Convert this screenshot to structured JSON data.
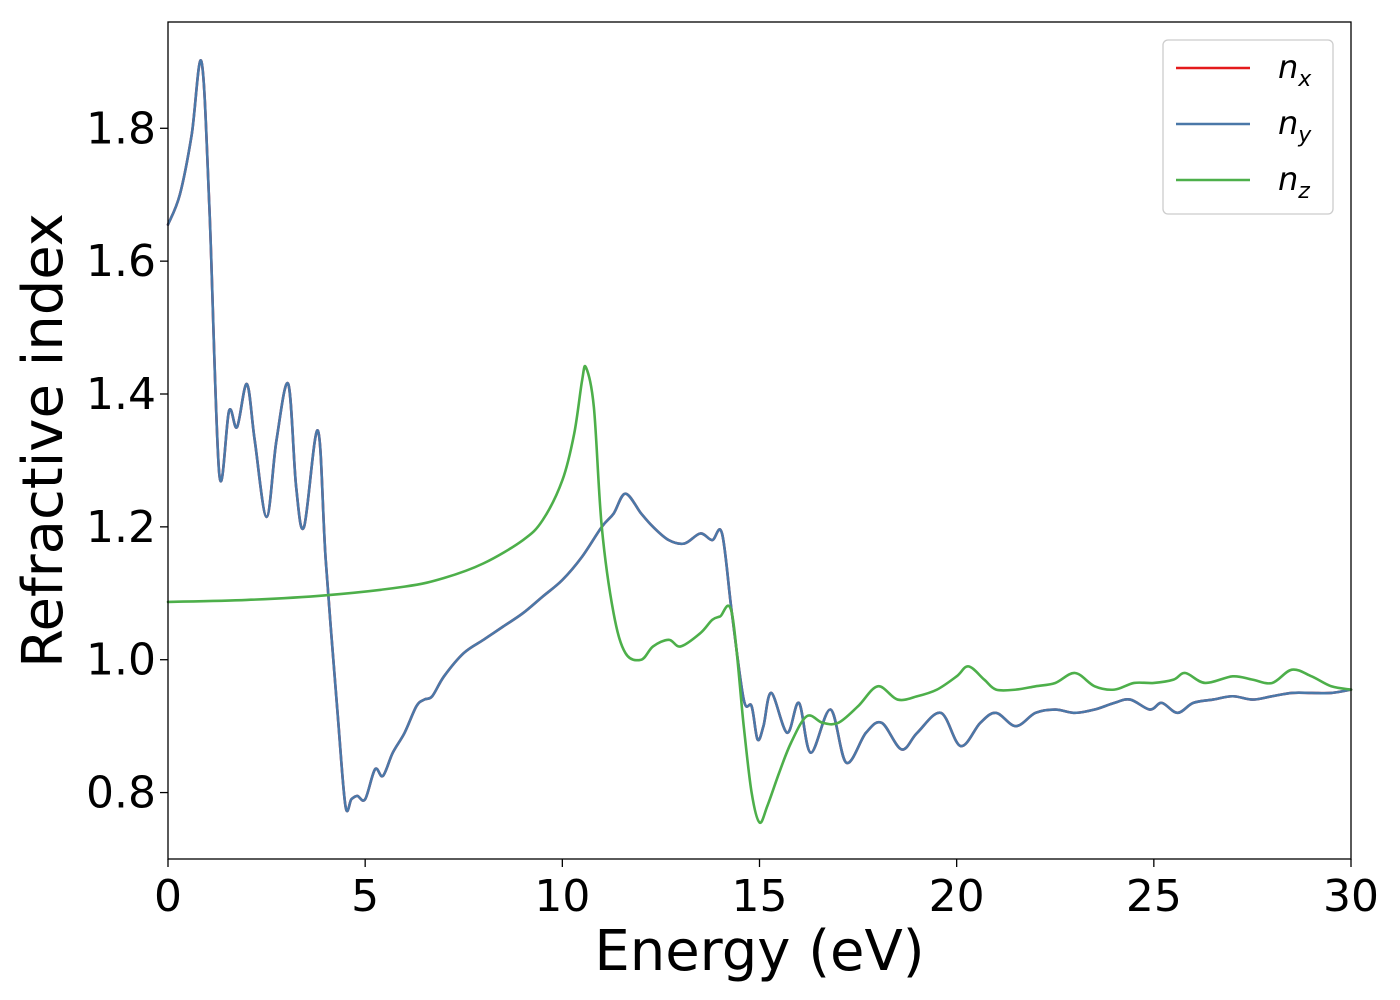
{
  "chart_data": {
    "type": "line",
    "xlabel": "Energy (eV)",
    "ylabel": "Refractive index",
    "xlim": [
      0,
      30
    ],
    "ylim": [
      0.7,
      1.96
    ],
    "x_ticks": [
      "0",
      "5",
      "10",
      "15",
      "20",
      "25",
      "30"
    ],
    "y_ticks": [
      "0.8",
      "1.0",
      "1.2",
      "1.4",
      "1.6",
      "1.8"
    ],
    "grid": false,
    "legend_position": "upper-right",
    "series": [
      {
        "key": "nx",
        "name": "n",
        "subscript": "x",
        "color": "#e41a1c",
        "x": [
          0,
          0.3,
          0.6,
          0.85,
          1.05,
          1.3,
          1.55,
          1.75,
          2.0,
          2.2,
          2.5,
          2.75,
          3.05,
          3.25,
          3.45,
          3.8,
          4.0,
          4.3,
          4.5,
          4.65,
          4.8,
          5.0,
          5.25,
          5.45,
          5.7,
          6.0,
          6.3,
          6.5,
          6.7,
          7.0,
          7.5,
          8.0,
          8.5,
          9.0,
          9.5,
          10.0,
          10.5,
          11.0,
          11.3,
          11.6,
          12.0,
          12.3,
          12.7,
          13.1,
          13.5,
          13.8,
          14.05,
          14.3,
          14.6,
          14.8,
          14.95,
          15.1,
          15.3,
          15.7,
          16.0,
          16.3,
          16.8,
          17.2,
          17.7,
          18.1,
          18.6,
          19.0,
          19.6,
          20.1,
          20.6,
          21.0,
          21.5,
          22.0,
          22.5,
          23.0,
          23.5,
          24.0,
          24.4,
          24.9,
          25.2,
          25.6,
          26.0,
          26.5,
          27.0,
          27.5,
          28.0,
          28.5,
          29.0,
          29.5,
          30.0
        ],
        "y": [
          1.655,
          1.7,
          1.79,
          1.9,
          1.68,
          1.28,
          1.375,
          1.35,
          1.415,
          1.33,
          1.215,
          1.33,
          1.415,
          1.26,
          1.2,
          1.345,
          1.15,
          0.92,
          0.78,
          0.79,
          0.795,
          0.79,
          0.835,
          0.825,
          0.86,
          0.89,
          0.93,
          0.94,
          0.945,
          0.975,
          1.01,
          1.03,
          1.05,
          1.07,
          1.095,
          1.12,
          1.155,
          1.2,
          1.22,
          1.25,
          1.22,
          1.2,
          1.18,
          1.175,
          1.19,
          1.18,
          1.19,
          1.07,
          0.94,
          0.93,
          0.88,
          0.9,
          0.95,
          0.89,
          0.935,
          0.86,
          0.925,
          0.845,
          0.89,
          0.905,
          0.865,
          0.89,
          0.92,
          0.87,
          0.905,
          0.92,
          0.9,
          0.92,
          0.925,
          0.92,
          0.925,
          0.935,
          0.94,
          0.925,
          0.935,
          0.92,
          0.935,
          0.94,
          0.945,
          0.94,
          0.945,
          0.95,
          0.95,
          0.95,
          0.955
        ]
      },
      {
        "key": "ny",
        "name": "n",
        "subscript": "y",
        "color": "#4a78a8",
        "x": [
          0,
          0.3,
          0.6,
          0.85,
          1.05,
          1.3,
          1.55,
          1.75,
          2.0,
          2.2,
          2.5,
          2.75,
          3.05,
          3.25,
          3.45,
          3.8,
          4.0,
          4.3,
          4.5,
          4.65,
          4.8,
          5.0,
          5.25,
          5.45,
          5.7,
          6.0,
          6.3,
          6.5,
          6.7,
          7.0,
          7.5,
          8.0,
          8.5,
          9.0,
          9.5,
          10.0,
          10.5,
          11.0,
          11.3,
          11.6,
          12.0,
          12.3,
          12.7,
          13.1,
          13.5,
          13.8,
          14.05,
          14.3,
          14.6,
          14.8,
          14.95,
          15.1,
          15.3,
          15.7,
          16.0,
          16.3,
          16.8,
          17.2,
          17.7,
          18.1,
          18.6,
          19.0,
          19.6,
          20.1,
          20.6,
          21.0,
          21.5,
          22.0,
          22.5,
          23.0,
          23.5,
          24.0,
          24.4,
          24.9,
          25.2,
          25.6,
          26.0,
          26.5,
          27.0,
          27.5,
          28.0,
          28.5,
          29.0,
          29.5,
          30.0
        ],
        "y": [
          1.655,
          1.7,
          1.79,
          1.9,
          1.68,
          1.28,
          1.375,
          1.35,
          1.415,
          1.33,
          1.215,
          1.33,
          1.415,
          1.26,
          1.2,
          1.345,
          1.15,
          0.92,
          0.78,
          0.79,
          0.795,
          0.79,
          0.835,
          0.825,
          0.86,
          0.89,
          0.93,
          0.94,
          0.945,
          0.975,
          1.01,
          1.03,
          1.05,
          1.07,
          1.095,
          1.12,
          1.155,
          1.2,
          1.22,
          1.25,
          1.22,
          1.2,
          1.18,
          1.175,
          1.19,
          1.18,
          1.19,
          1.07,
          0.94,
          0.93,
          0.88,
          0.9,
          0.95,
          0.89,
          0.935,
          0.86,
          0.925,
          0.845,
          0.89,
          0.905,
          0.865,
          0.89,
          0.92,
          0.87,
          0.905,
          0.92,
          0.9,
          0.92,
          0.925,
          0.92,
          0.925,
          0.935,
          0.94,
          0.925,
          0.935,
          0.92,
          0.935,
          0.94,
          0.945,
          0.94,
          0.945,
          0.95,
          0.95,
          0.95,
          0.955
        ]
      },
      {
        "key": "nz",
        "name": "n",
        "subscript": "z",
        "color": "#4daf4a",
        "x": [
          0,
          2,
          4,
          6,
          7,
          8,
          9,
          9.5,
          10.0,
          10.3,
          10.5,
          10.6,
          10.8,
          11.0,
          11.3,
          11.6,
          12.0,
          12.3,
          12.7,
          13.0,
          13.5,
          13.8,
          14.0,
          14.3,
          14.6,
          14.8,
          15.0,
          15.2,
          15.5,
          15.8,
          16.2,
          16.6,
          17.0,
          17.5,
          18.0,
          18.5,
          19.0,
          19.5,
          20.0,
          20.3,
          20.7,
          21.0,
          21.5,
          22.0,
          22.5,
          23.0,
          23.5,
          24.0,
          24.5,
          25.0,
          25.5,
          25.8,
          26.3,
          27.0,
          27.5,
          28.0,
          28.5,
          29.0,
          29.5,
          30.0
        ],
        "y": [
          1.087,
          1.09,
          1.097,
          1.11,
          1.123,
          1.145,
          1.18,
          1.21,
          1.27,
          1.34,
          1.42,
          1.44,
          1.38,
          1.2,
          1.07,
          1.01,
          1.0,
          1.02,
          1.03,
          1.02,
          1.04,
          1.06,
          1.065,
          1.07,
          0.9,
          0.8,
          0.755,
          0.78,
          0.83,
          0.875,
          0.915,
          0.905,
          0.905,
          0.93,
          0.96,
          0.94,
          0.945,
          0.955,
          0.975,
          0.99,
          0.97,
          0.955,
          0.955,
          0.96,
          0.965,
          0.98,
          0.96,
          0.955,
          0.965,
          0.965,
          0.97,
          0.98,
          0.965,
          0.975,
          0.97,
          0.965,
          0.985,
          0.975,
          0.96,
          0.955
        ]
      }
    ]
  }
}
